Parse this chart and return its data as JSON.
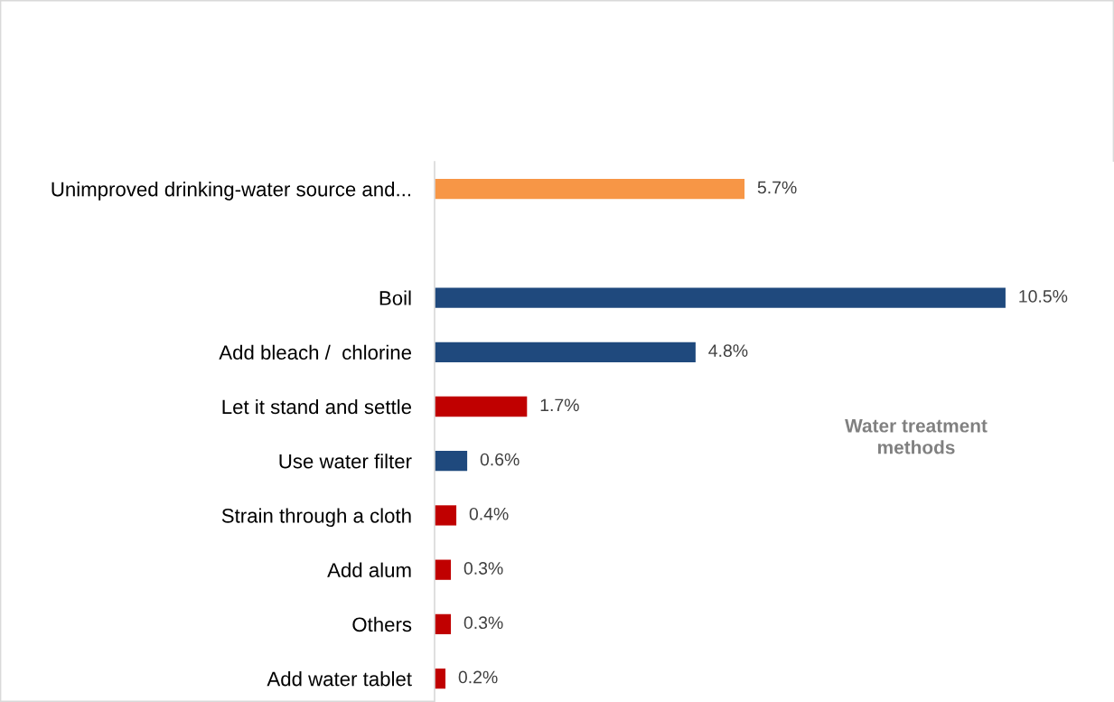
{
  "chart_data": {
    "type": "bar",
    "orientation": "horizontal",
    "categories": [
      "Unimproved drinking-water source and...",
      null,
      "Boil",
      "Add bleach /  chlorine",
      "Let it stand and settle",
      "Use water filter",
      "Strain through a cloth",
      "Add alum",
      "Others",
      "Add water tablet"
    ],
    "values": [
      5.7,
      null,
      10.5,
      4.8,
      1.7,
      0.6,
      0.4,
      0.3,
      0.3,
      0.2
    ],
    "value_labels": [
      "5.7%",
      null,
      "10.5%",
      "4.8%",
      "1.7%",
      "0.6%",
      "0.4%",
      "0.3%",
      "0.3%",
      "0.2%"
    ],
    "colors": [
      "#f79646",
      null,
      "#1f497d",
      "#1f497d",
      "#c00000",
      "#1f497d",
      "#c00000",
      "#c00000",
      "#c00000",
      "#c00000"
    ],
    "annotations": [
      "Water treatment\nmethods"
    ],
    "tick_labels": "y",
    "grid": false,
    "legend": false
  }
}
